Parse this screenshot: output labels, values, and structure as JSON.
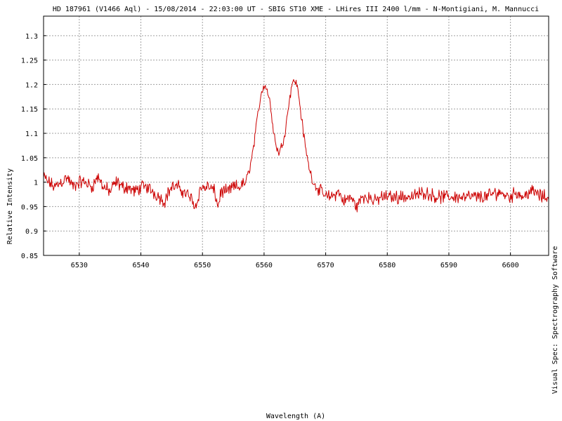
{
  "chart_data": {
    "type": "line",
    "title": "HD 187961 (V1466 Aql) - 15/08/2014 - 22:03:00 UT - SBIG ST10 XME - LHires III 2400 l/mm - N-Montigiani, M. Mannucci",
    "xlabel": "Wavelength (A)",
    "ylabel": "Relative Intensity",
    "side_label": "Visual Spec: Spectrography Software",
    "xlim": [
      6524.2,
      6606.2
    ],
    "ylim": [
      0.85,
      1.34
    ],
    "x_ticks": [
      6530,
      6540,
      6550,
      6560,
      6570,
      6580,
      6590,
      6600
    ],
    "y_ticks": [
      0.85,
      0.9,
      0.95,
      1,
      1.05,
      1.1,
      1.15,
      1.2,
      1.25,
      1.3
    ],
    "y_tick_labels": [
      "0.85",
      "0.9",
      "0.95",
      "1",
      "1.05",
      "1.1",
      "1.15",
      "1.2",
      "1.25",
      "1.3"
    ],
    "grid": true,
    "line_color": "#cc0000",
    "series": [
      {
        "x": [
          6524.2,
          6525.0,
          6526.0,
          6527.0,
          6528.0,
          6529.0,
          6530.0,
          6531.0,
          6532.0,
          6533.0,
          6534.0,
          6535.0,
          6536.0,
          6537.0,
          6538.0,
          6539.0,
          6540.0,
          6541.0,
          6542.0,
          6543.0,
          6543.8,
          6544.5,
          6545.0,
          6546.0,
          6547.0,
          6548.0,
          6548.9,
          6549.5,
          6550.0,
          6551.0,
          6552.0,
          6552.5,
          6553.0,
          6554.0,
          6555.0,
          6556.0,
          6557.0,
          6557.5,
          6558.0,
          6558.5,
          6559.0,
          6559.5,
          6560.0,
          6560.5,
          6561.0,
          6561.5,
          6562.0,
          6562.5,
          6563.0,
          6563.5,
          6564.0,
          6564.5,
          6565.0,
          6565.5,
          6566.0,
          6566.5,
          6567.0,
          6567.5,
          6568.0,
          6568.5,
          6569.0,
          6569.5,
          6570.0,
          6571.0,
          6572.0,
          6573.0,
          6574.0,
          6575.0,
          6576.0,
          6577.0,
          6578.0,
          6579.0,
          6580.0,
          6582.0,
          6584.0,
          6586.0,
          6588.0,
          6590.0,
          6592.0,
          6594.0,
          6596.0,
          6598.0,
          6600.0,
          6601.0,
          6602.0,
          6603.0,
          6604.0,
          6605.0,
          6606.2
        ],
        "y": [
          1.01,
          1.0,
          0.99,
          1.0,
          1.01,
          0.99,
          1.0,
          1.0,
          0.99,
          1.01,
          0.99,
          0.98,
          1.0,
          0.99,
          0.99,
          0.98,
          0.99,
          0.99,
          0.98,
          0.97,
          0.96,
          0.98,
          0.99,
          0.99,
          0.98,
          0.97,
          0.95,
          0.98,
          0.99,
          0.99,
          0.98,
          0.95,
          0.98,
          0.98,
          0.99,
          0.99,
          1.0,
          1.02,
          1.05,
          1.09,
          1.14,
          1.18,
          1.2,
          1.19,
          1.16,
          1.11,
          1.07,
          1.06,
          1.08,
          1.11,
          1.16,
          1.2,
          1.21,
          1.19,
          1.14,
          1.09,
          1.05,
          1.02,
          1.0,
          0.99,
          0.98,
          0.98,
          0.97,
          0.97,
          0.98,
          0.96,
          0.97,
          0.95,
          0.97,
          0.97,
          0.96,
          0.97,
          0.97,
          0.97,
          0.97,
          0.98,
          0.97,
          0.97,
          0.97,
          0.97,
          0.97,
          0.98,
          0.97,
          0.98,
          0.97,
          0.98,
          0.98,
          0.97,
          0.97
        ]
      }
    ]
  }
}
